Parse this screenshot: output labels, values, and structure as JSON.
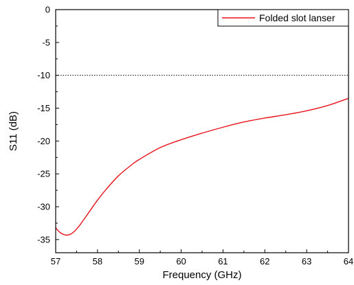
{
  "chart_data": {
    "type": "line",
    "xlabel": "Frequency (GHz)",
    "ylabel": "S11 (dB)",
    "xlim": [
      57,
      64
    ],
    "ylim": [
      -37,
      0
    ],
    "xticks": [
      57,
      58,
      59,
      60,
      61,
      62,
      63,
      64
    ],
    "yticks": [
      0,
      -5,
      -10,
      -15,
      -20,
      -25,
      -30,
      -35
    ],
    "grid": false,
    "legend_position": "top-right",
    "series": [
      {
        "name": "Folded slot lanser",
        "color": "#e8121c",
        "x": [
          57.0,
          57.1,
          57.2,
          57.3,
          57.4,
          57.5,
          57.6,
          57.8,
          58.0,
          58.2,
          58.5,
          58.8,
          59.0,
          59.5,
          60.0,
          60.5,
          61.0,
          61.5,
          62.0,
          62.5,
          63.0,
          63.5,
          64.0
        ],
        "y": [
          -33.2,
          -33.9,
          -34.25,
          -34.3,
          -34.0,
          -33.4,
          -32.6,
          -30.8,
          -29.0,
          -27.4,
          -25.3,
          -23.7,
          -22.8,
          -21.0,
          -19.8,
          -18.8,
          -17.9,
          -17.1,
          -16.5,
          -16.0,
          -15.4,
          -14.6,
          -13.5
        ]
      }
    ],
    "reference_line": {
      "y": -10,
      "style": "dotted",
      "color": "#000000"
    }
  }
}
